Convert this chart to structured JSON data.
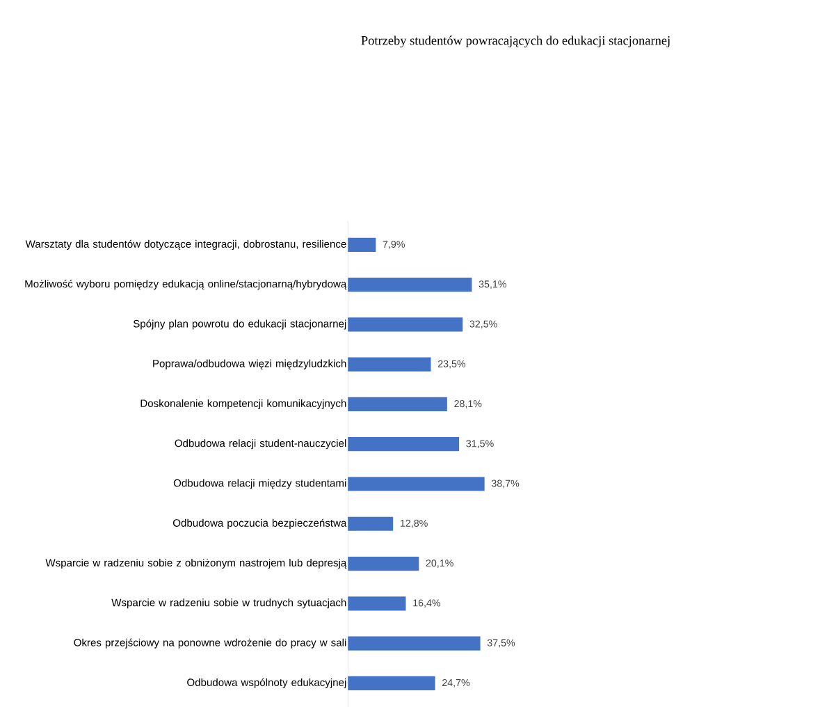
{
  "chart_data": {
    "type": "bar",
    "orientation": "horizontal",
    "title": "Potrzeby studentów powracających do edukacji stacjonarnej",
    "categories": [
      "Warsztaty dla studentów dotyczące integracji, dobrostanu, resilience",
      "Możliwość wyboru pomiędzy edukacją online/stacjonarną/hybrydową",
      "Spójny plan powrotu do edukacji stacjonarnej",
      "Poprawa/odbudowa więzi międzyludzkich",
      "Doskonalenie kompetencji komunikacyjnych",
      "Odbudowa relacji student-nauczyciel",
      "Odbudowa relacji między studentami",
      "Odbudowa poczucia bezpieczeństwa",
      "Wsparcie w radzeniu sobie z obniżonym nastrojem lub depresją",
      "Wsparcie w radzeniu sobie w trudnych sytuacjach",
      "Okres przejściowy na ponowne wdrożenie do pracy w sali",
      "Odbudowa wspólnoty edukacyjnej"
    ],
    "values": [
      7.9,
      35.1,
      32.5,
      23.5,
      28.1,
      31.5,
      38.7,
      12.8,
      20.1,
      16.4,
      37.5,
      24.7
    ],
    "value_labels": [
      "7,9%",
      "35,1%",
      "32,5%",
      "23,5%",
      "28,1%",
      "31,5%",
      "38,7%",
      "12,8%",
      "20,1%",
      "16,4%",
      "37,5%",
      "24,7%"
    ],
    "color": "#4472c4"
  }
}
